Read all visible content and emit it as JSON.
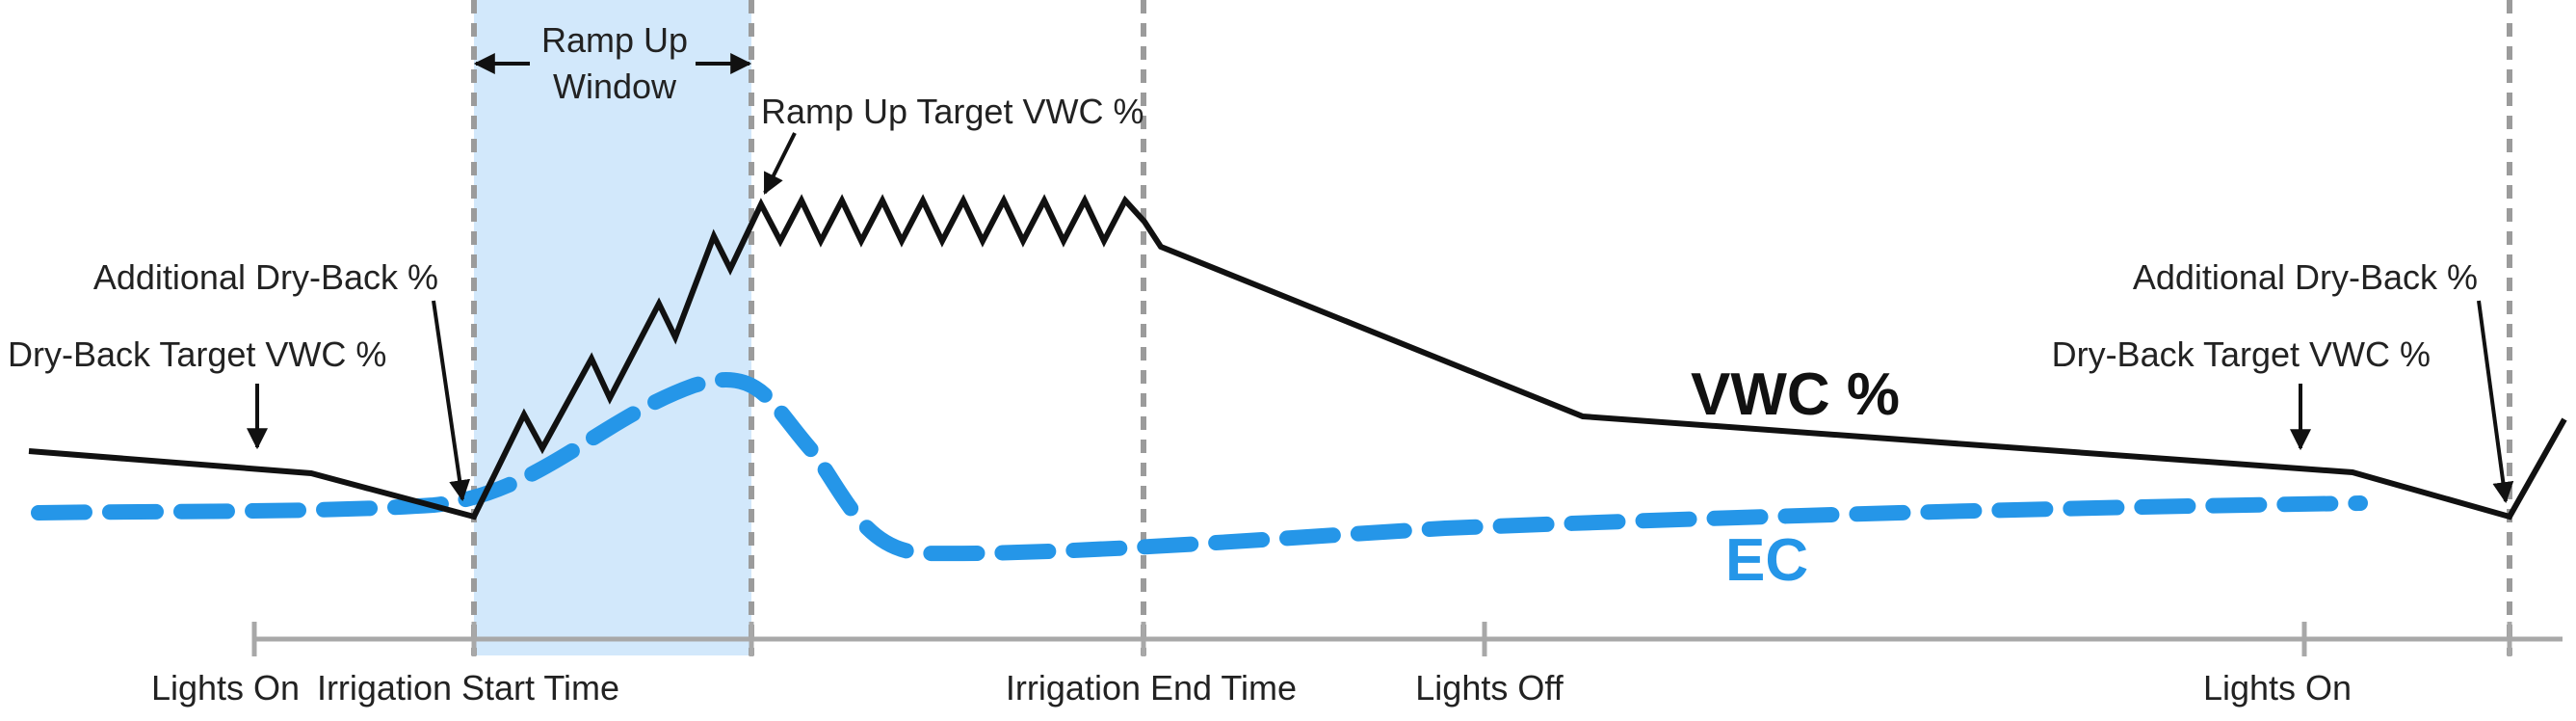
{
  "diagram": {
    "colors": {
      "vwc": "#111111",
      "ec": "#2596e8",
      "window_fill": "#d2e8fb",
      "divider": "#9b9b9b",
      "axis": "#a8a8a8",
      "text": "#222222"
    },
    "window": {
      "title_line1": "Ramp Up",
      "title_line2": "Window"
    },
    "annotations": {
      "ramp_up_target": "Ramp Up Target VWC %",
      "additional_dry_back_left": "Additional Dry-Back %",
      "dry_back_target_left": "Dry-Back Target VWC %",
      "additional_dry_back_right": "Additional Dry-Back %",
      "dry_back_target_right": "Dry-Back Target VWC %"
    },
    "series_labels": {
      "vwc": "VWC %",
      "ec": "EC"
    },
    "timeline": {
      "lights_on_1": "Lights On",
      "irrigation_start": "Irrigation Start Time",
      "irrigation_end": "Irrigation End Time",
      "lights_off": "Lights Off",
      "lights_on_2": "Lights On"
    }
  }
}
